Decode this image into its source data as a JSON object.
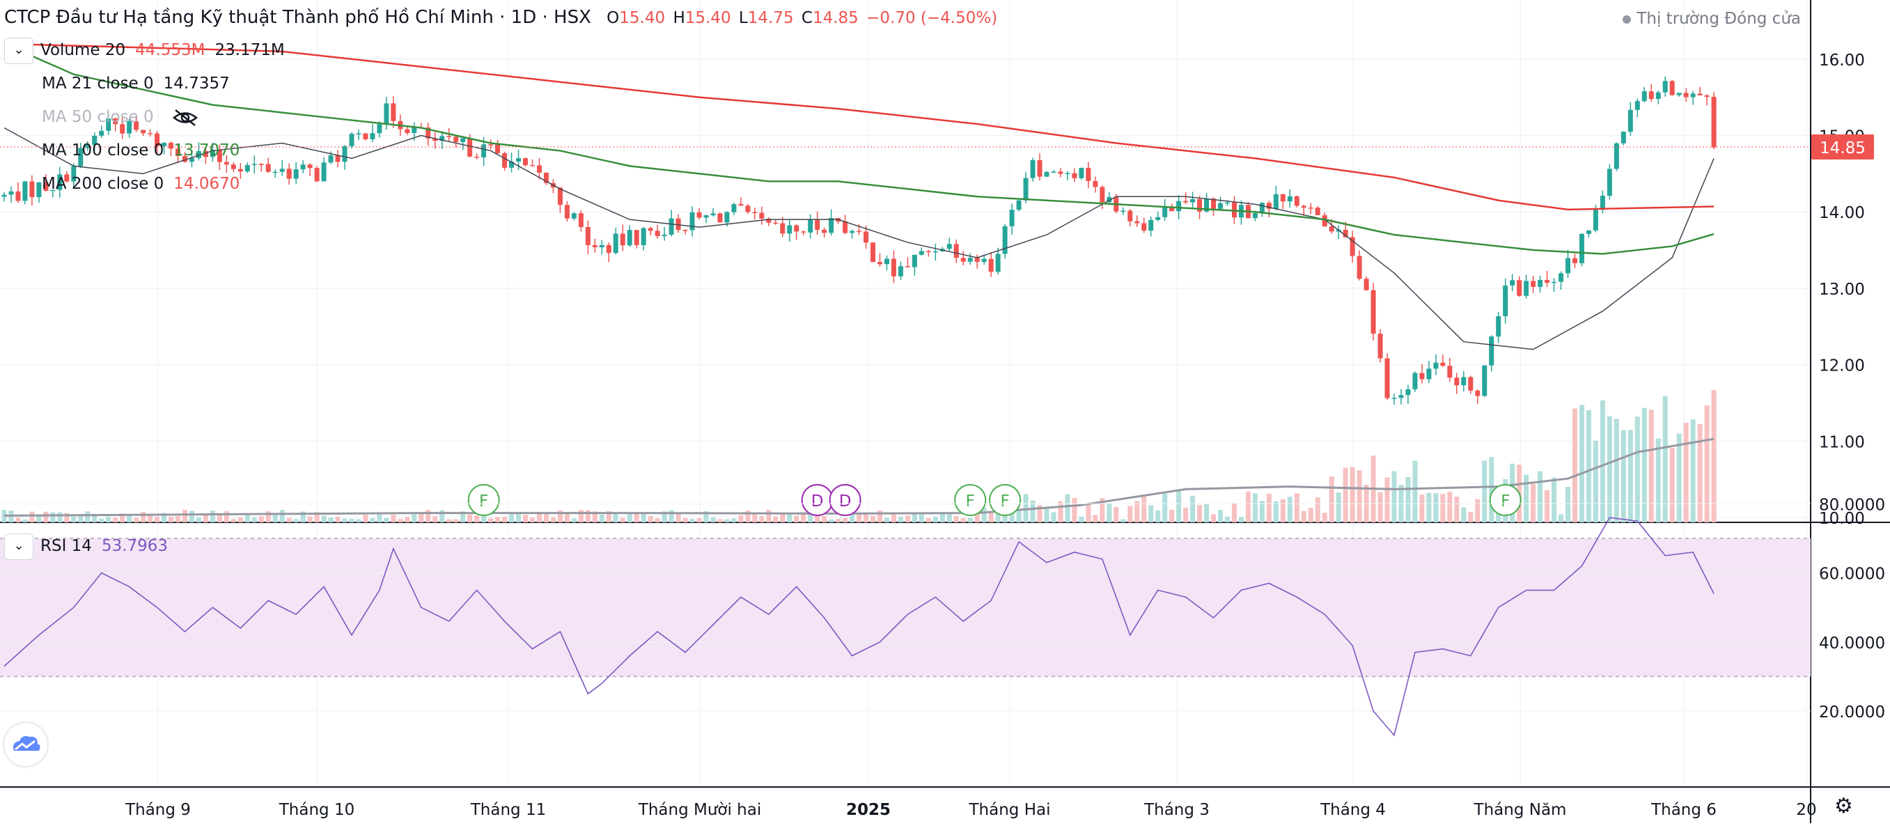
{
  "header": {
    "title": "CTCP Đầu tư Hạ tầng Kỹ thuật Thành phố Hồ Chí Minh · 1D · HSX",
    "open_label": "O",
    "open": "15.40",
    "high_label": "H",
    "high": "15.40",
    "low_label": "L",
    "low": "14.75",
    "close_label": "C",
    "close": "14.85",
    "change": "−0.70 (−4.50%)",
    "market_status": "Thị trường Đóng cửa"
  },
  "indicators": {
    "volume": {
      "label": "Volume 20",
      "value1": "44.553M",
      "value2": "23.171M"
    },
    "ma21": {
      "label": "MA 21 close 0",
      "value": "14.7357"
    },
    "ma50": {
      "label": "MA 50 close 0"
    },
    "ma100": {
      "label": "MA 100 close 0",
      "value": "13.7070"
    },
    "ma200": {
      "label": "MA 200 close 0",
      "value": "14.0670"
    },
    "rsi": {
      "label": "RSI 14",
      "value": "53.7963"
    }
  },
  "colors": {
    "up": "#26a69a",
    "down": "#ef5350",
    "up_vol": "#b2dfdb",
    "down_vol": "#f7c1c1",
    "ma21": "#434651",
    "ma100": "#388e3c",
    "ma200": "#e53935",
    "rsi": "#7e57c2",
    "rsi_band": "#f3e5f5",
    "dividend": "#9c27b0",
    "earnings": "#4caf50",
    "price_tag": "#ef5350"
  },
  "chart_data": [
    {
      "type": "candlestick",
      "yaxis_ticks": [
        "16.00",
        "15.00",
        "14.00",
        "13.00",
        "12.00",
        "11.00",
        "10.00"
      ],
      "ylim": [
        10,
        16.3
      ],
      "last_price": "14.85",
      "xaxis_labels": [
        "Tháng 9",
        "Tháng 10",
        "Tháng 11",
        "Tháng Mười hai",
        "2025",
        "Tháng Hai",
        "Tháng 3",
        "Tháng 4",
        "Tháng Năm",
        "Tháng 6",
        "20"
      ],
      "events": [
        {
          "type": "earnings",
          "label": "F",
          "x_index": 69
        },
        {
          "type": "dividend",
          "label": "D",
          "x_index": 117
        },
        {
          "type": "dividend",
          "label": "D",
          "x_index": 121
        },
        {
          "type": "earnings",
          "label": "F",
          "x_index": 139
        },
        {
          "type": "earnings",
          "label": "F",
          "x_index": 144
        },
        {
          "type": "earnings",
          "label": "F",
          "x_index": 216
        }
      ],
      "series": [
        {
          "name": "MA 21 close 0",
          "points": [
            [
              0,
              15.1
            ],
            [
              10,
              14.6
            ],
            [
              20,
              14.5
            ],
            [
              30,
              14.8
            ],
            [
              40,
              14.9
            ],
            [
              50,
              14.7
            ],
            [
              60,
              15.0
            ],
            [
              70,
              14.8
            ],
            [
              80,
              14.3
            ],
            [
              90,
              13.9
            ],
            [
              100,
              13.8
            ],
            [
              110,
              13.9
            ],
            [
              120,
              13.9
            ],
            [
              130,
              13.6
            ],
            [
              140,
              13.4
            ],
            [
              150,
              13.7
            ],
            [
              160,
              14.2
            ],
            [
              170,
              14.2
            ],
            [
              180,
              14.1
            ],
            [
              190,
              13.9
            ],
            [
              200,
              13.2
            ],
            [
              210,
              12.3
            ],
            [
              220,
              12.2
            ],
            [
              230,
              12.7
            ],
            [
              240,
              13.4
            ],
            [
              246,
              14.7
            ]
          ]
        },
        {
          "name": "MA 100 close 0",
          "points": [
            [
              0,
              16.2
            ],
            [
              10,
              15.8
            ],
            [
              20,
              15.6
            ],
            [
              30,
              15.4
            ],
            [
              40,
              15.3
            ],
            [
              50,
              15.2
            ],
            [
              60,
              15.1
            ],
            [
              70,
              14.9
            ],
            [
              80,
              14.8
            ],
            [
              90,
              14.6
            ],
            [
              100,
              14.5
            ],
            [
              110,
              14.4
            ],
            [
              120,
              14.4
            ],
            [
              130,
              14.3
            ],
            [
              140,
              14.2
            ],
            [
              150,
              14.15
            ],
            [
              160,
              14.1
            ],
            [
              170,
              14.05
            ],
            [
              180,
              14.0
            ],
            [
              190,
              13.9
            ],
            [
              200,
              13.7
            ],
            [
              210,
              13.6
            ],
            [
              220,
              13.5
            ],
            [
              230,
              13.45
            ],
            [
              240,
              13.55
            ],
            [
              246,
              13.71
            ]
          ]
        },
        {
          "name": "MA 200 close 0",
          "points": [
            [
              0,
              16.2
            ],
            [
              20,
              16.15
            ],
            [
              40,
              16.1
            ],
            [
              60,
              15.9
            ],
            [
              80,
              15.7
            ],
            [
              100,
              15.5
            ],
            [
              120,
              15.35
            ],
            [
              140,
              15.15
            ],
            [
              160,
              14.9
            ],
            [
              180,
              14.7
            ],
            [
              200,
              14.45
            ],
            [
              215,
              14.15
            ],
            [
              225,
              14.03
            ],
            [
              235,
              14.05
            ],
            [
              246,
              14.07
            ]
          ]
        }
      ],
      "volume_avg": [
        [
          0,
          0.2
        ],
        [
          30,
          0.25
        ],
        [
          60,
          0.3
        ],
        [
          90,
          0.3
        ],
        [
          120,
          0.28
        ],
        [
          140,
          0.3
        ],
        [
          155,
          0.6
        ],
        [
          170,
          1.2
        ],
        [
          185,
          1.3
        ],
        [
          200,
          1.2
        ],
        [
          215,
          1.3
        ],
        [
          225,
          1.6
        ],
        [
          235,
          2.6
        ],
        [
          246,
          3.1
        ]
      ]
    },
    {
      "type": "line",
      "series": [
        {
          "name": "RSI 14",
          "points": [
            [
              0,
              33
            ],
            [
              5,
              42
            ],
            [
              10,
              50
            ],
            [
              14,
              60
            ],
            [
              18,
              56
            ],
            [
              22,
              50
            ],
            [
              26,
              43
            ],
            [
              30,
              50
            ],
            [
              34,
              44
            ],
            [
              38,
              52
            ],
            [
              42,
              48
            ],
            [
              46,
              56
            ],
            [
              50,
              42
            ],
            [
              54,
              55
            ],
            [
              56,
              67
            ],
            [
              60,
              50
            ],
            [
              64,
              46
            ],
            [
              68,
              55
            ],
            [
              72,
              46
            ],
            [
              76,
              38
            ],
            [
              80,
              43
            ],
            [
              84,
              25
            ],
            [
              86,
              28
            ],
            [
              90,
              36
            ],
            [
              94,
              43
            ],
            [
              98,
              37
            ],
            [
              102,
              45
            ],
            [
              106,
              53
            ],
            [
              110,
              48
            ],
            [
              114,
              56
            ],
            [
              118,
              47
            ],
            [
              122,
              36
            ],
            [
              126,
              40
            ],
            [
              130,
              48
            ],
            [
              134,
              53
            ],
            [
              138,
              46
            ],
            [
              142,
              52
            ],
            [
              146,
              69
            ],
            [
              150,
              63
            ],
            [
              154,
              66
            ],
            [
              158,
              64
            ],
            [
              162,
              42
            ],
            [
              166,
              55
            ],
            [
              170,
              53
            ],
            [
              174,
              47
            ],
            [
              178,
              55
            ],
            [
              182,
              57
            ],
            [
              186,
              53
            ],
            [
              190,
              48
            ],
            [
              194,
              39
            ],
            [
              197,
              20
            ],
            [
              200,
              13
            ],
            [
              203,
              37
            ],
            [
              207,
              38
            ],
            [
              211,
              36
            ],
            [
              215,
              50
            ],
            [
              219,
              55
            ],
            [
              223,
              55
            ],
            [
              227,
              62
            ],
            [
              231,
              76
            ],
            [
              235,
              75
            ],
            [
              239,
              65
            ],
            [
              243,
              66
            ],
            [
              246,
              54
            ]
          ]
        }
      ],
      "yaxis_ticks": [
        "80.0000",
        "60.0000",
        "40.0000",
        "20.0000"
      ],
      "ylim": [
        7,
        84
      ],
      "bands": [
        30,
        70
      ]
    }
  ]
}
